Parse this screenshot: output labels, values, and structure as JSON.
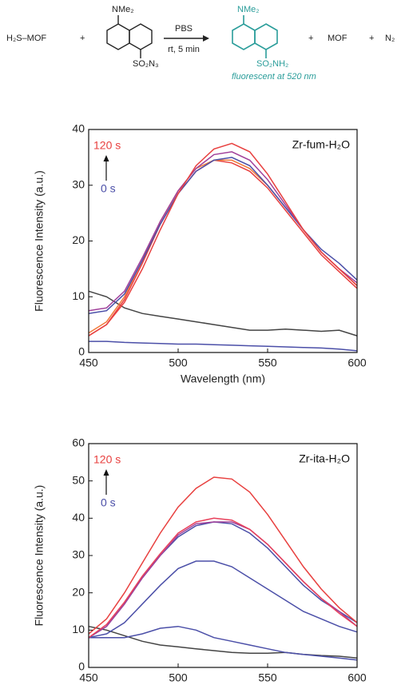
{
  "scheme": {
    "reactant": "H₂S–MOF",
    "plus1": "+",
    "amine1": "NMe₂",
    "azide": "SO₂N₃",
    "condition1": "PBS",
    "condition2": "rt, 5 min",
    "amine2": "NMe₂",
    "sulfonamide": "SO₂NH₂",
    "note": "fluorescent at 520 nm",
    "plus2": "+",
    "mof": "MOF",
    "plus3": "+",
    "n2": "N₂"
  },
  "chart_data": [
    {
      "type": "line",
      "xlabel": "Wavelength (nm)",
      "ylabel": "Fluorescence Intensity (a.u.)",
      "xlim": [
        450,
        600
      ],
      "xticks": [
        450,
        500,
        550,
        600
      ],
      "ylim": [
        0,
        40
      ],
      "yticks": [
        0,
        10,
        20,
        30,
        40
      ],
      "annotations": [
        {
          "text": "120 s",
          "color": "#e8403f"
        },
        {
          "text": "0 s",
          "color": "#4b4fa8"
        },
        {
          "text": "Zr-fum-H₂O",
          "color": "#111111"
        }
      ],
      "x": [
        450,
        460,
        470,
        480,
        490,
        500,
        510,
        520,
        530,
        540,
        550,
        560,
        570,
        580,
        590,
        600
      ],
      "series": [
        {
          "color": "#444444",
          "values": [
            11,
            10,
            8,
            7,
            6.5,
            6,
            5.5,
            5,
            4.5,
            4,
            4,
            4.2,
            4,
            3.8,
            4,
            3
          ]
        },
        {
          "color": "#4b4fa8",
          "values": [
            2,
            2,
            1.8,
            1.7,
            1.6,
            1.5,
            1.5,
            1.4,
            1.3,
            1.2,
            1.1,
            1,
            0.9,
            0.8,
            0.6,
            0.3
          ]
        },
        {
          "color": "#e8403f",
          "values": [
            3,
            5,
            9.5,
            16,
            23,
            28.5,
            32.5,
            34.5,
            34,
            32.5,
            29.5,
            25.5,
            21.5,
            17.5,
            14.5,
            11.5
          ]
        },
        {
          "color": "#f07a3a",
          "values": [
            3.5,
            5.5,
            10,
            16.5,
            23.5,
            29,
            33,
            34.5,
            34.5,
            33,
            30,
            26,
            22,
            18,
            15,
            12
          ]
        },
        {
          "color": "#4b4fa8",
          "values": [
            7,
            7.5,
            10.5,
            16.5,
            23,
            28.5,
            32.5,
            34.5,
            35,
            33.5,
            30,
            26,
            22,
            18.5,
            16,
            13
          ]
        },
        {
          "color": "#a1409a",
          "values": [
            7.5,
            8,
            11,
            17,
            23.5,
            29,
            33,
            35.5,
            36,
            34.5,
            31,
            26.5,
            22,
            18,
            15,
            12.5
          ]
        },
        {
          "color": "#e8403f",
          "values": [
            3,
            5,
            9,
            15,
            22,
            28.5,
            33.5,
            36.5,
            37.5,
            36,
            32,
            27,
            22,
            18,
            15,
            12
          ]
        }
      ]
    },
    {
      "type": "line",
      "xlabel": "Wavelength (nm)",
      "ylabel": "Fluorescence Intensity (a.u.)",
      "xlim": [
        450,
        600
      ],
      "xticks": [
        450,
        500,
        550,
        600
      ],
      "ylim": [
        0,
        60
      ],
      "yticks": [
        0,
        10,
        20,
        30,
        40,
        50,
        60
      ],
      "annotations": [
        {
          "text": "120 s",
          "color": "#e8403f"
        },
        {
          "text": "0 s",
          "color": "#4b4fa8"
        },
        {
          "text": "Zr-ita-H₂O",
          "color": "#111111"
        }
      ],
      "x": [
        450,
        460,
        470,
        480,
        490,
        500,
        510,
        520,
        530,
        540,
        550,
        560,
        570,
        580,
        590,
        600
      ],
      "series": [
        {
          "color": "#444444",
          "values": [
            11,
            10,
            8.5,
            7,
            6,
            5.5,
            5,
            4.5,
            4,
            3.8,
            3.8,
            4,
            3.5,
            3.2,
            3,
            2.5
          ]
        },
        {
          "color": "#4b4fa8",
          "values": [
            8,
            8,
            8,
            9,
            10.5,
            11,
            10,
            8,
            7,
            6,
            5,
            4,
            3.5,
            3,
            2.5,
            2
          ]
        },
        {
          "color": "#4b4fa8",
          "values": [
            8,
            9,
            12,
            17,
            22,
            26.5,
            28.5,
            28.5,
            27,
            24,
            21,
            18,
            15,
            13,
            11,
            9.5
          ]
        },
        {
          "color": "#4b4fa8",
          "values": [
            8,
            11,
            17,
            24,
            30,
            35,
            38,
            39,
            38.5,
            36,
            32,
            27,
            22,
            18,
            15,
            12
          ]
        },
        {
          "color": "#a1409a",
          "values": [
            8,
            11,
            17,
            24,
            30,
            35.5,
            38.5,
            39,
            39,
            37,
            33,
            28,
            23,
            18.5,
            15,
            11
          ]
        },
        {
          "color": "#e8405a",
          "values": [
            8,
            11.5,
            17.5,
            24.5,
            30.5,
            36,
            39,
            40,
            39.5,
            37,
            33,
            28,
            23,
            18.5,
            14.5,
            11
          ]
        },
        {
          "color": "#e8403f",
          "values": [
            9,
            13,
            20,
            28,
            36,
            43,
            48,
            51,
            50.5,
            47,
            41,
            34,
            27,
            21,
            16,
            12
          ]
        }
      ]
    }
  ]
}
